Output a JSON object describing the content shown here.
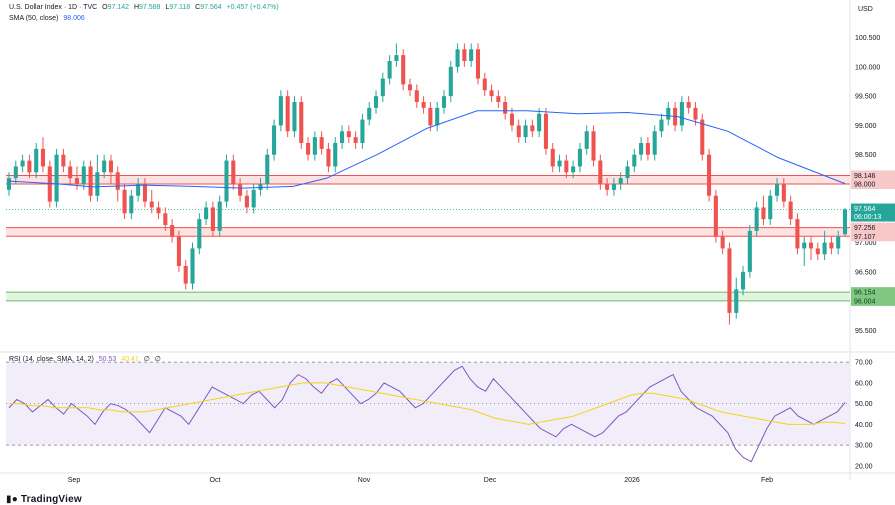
{
  "header": {
    "title": "U.S. Dollar Index · 1D · TVC",
    "o_label": "O",
    "o_value": "97.142",
    "h_label": "H",
    "h_value": "97.588",
    "l_label": "L",
    "l_value": "97.118",
    "c_label": "C",
    "c_value": "97.564",
    "change": "+0.457 (+0.47%)",
    "sma_label": "SMA (50, close)",
    "sma_value": "98.006",
    "currency": "USD"
  },
  "rsi_header": {
    "label": "RSI (14, close, SMA, 14, 2)",
    "rsi_value": "50.53",
    "sma_value": "40.41",
    "extra1": "∅",
    "extra2": "∅"
  },
  "logo_text": "TradingView",
  "colors": {
    "up": "#26a69a",
    "down": "#ef5350",
    "sma": "#2962ff",
    "rsi": "#7e57c2",
    "rsi_sma": "#f5d31a",
    "resistance_fill": "#fde2e2",
    "resistance_line": "#ef5350",
    "support_fill": "#e3f4e1",
    "support_line": "#66bb6a"
  },
  "chart_data": [
    {
      "type": "candlestick",
      "title": "U.S. Dollar Index · 1D · TVC",
      "ylim": [
        95.2,
        100.8
      ],
      "y_ticks": [
        "100.500",
        "100.000",
        "99.500",
        "99.000",
        "98.500",
        "98.000",
        "97.500",
        "97.000",
        "96.500",
        "96.000",
        "95.500"
      ],
      "x_ticks": [
        "Sep",
        "Oct",
        "Nov",
        "Dec",
        "2026",
        "Feb"
      ],
      "zones": [
        {
          "name": "resistance",
          "top": 98.146,
          "bottom": 98.0,
          "top_label": "98.146",
          "bottom_label": "98.000"
        },
        {
          "name": "mid",
          "top": 97.256,
          "bottom": 97.107,
          "top_label": "97.256",
          "bottom_label": "97.107"
        },
        {
          "name": "support",
          "top": 96.154,
          "bottom": 96.004,
          "top_label": "96.154",
          "bottom_label": "96.004"
        }
      ],
      "last_price": {
        "value": 97.564,
        "label": "97.564",
        "countdown": "06:00:13"
      },
      "candles": [
        [
          97.9,
          98.1,
          97.8,
          98.2
        ],
        [
          98.1,
          98.3,
          98.0,
          98.4
        ],
        [
          98.3,
          98.4,
          98.2,
          98.5
        ],
        [
          98.4,
          98.2,
          98.1,
          98.5
        ],
        [
          98.2,
          98.6,
          98.1,
          98.7
        ],
        [
          98.6,
          98.3,
          98.2,
          98.8
        ],
        [
          98.3,
          97.7,
          97.6,
          98.4
        ],
        [
          97.7,
          98.5,
          97.6,
          98.6
        ],
        [
          98.5,
          98.3,
          98.2,
          98.6
        ],
        [
          98.3,
          98.1,
          98.0,
          98.4
        ],
        [
          98.1,
          98.0,
          97.9,
          98.3
        ],
        [
          98.0,
          98.3,
          97.9,
          98.4
        ],
        [
          98.3,
          97.8,
          97.7,
          98.4
        ],
        [
          97.8,
          98.2,
          97.7,
          98.5
        ],
        [
          98.2,
          98.4,
          98.1,
          98.5
        ],
        [
          98.4,
          98.2,
          98.0,
          98.5
        ],
        [
          98.2,
          97.9,
          97.7,
          98.3
        ],
        [
          97.9,
          97.5,
          97.4,
          98.0
        ],
        [
          97.5,
          97.8,
          97.4,
          97.9
        ],
        [
          97.8,
          98.0,
          97.7,
          98.1
        ],
        [
          98.0,
          97.7,
          97.6,
          98.1
        ],
        [
          97.7,
          97.6,
          97.5,
          97.9
        ],
        [
          97.6,
          97.5,
          97.4,
          97.7
        ],
        [
          97.5,
          97.3,
          97.2,
          97.6
        ],
        [
          97.3,
          97.1,
          97.0,
          97.4
        ],
        [
          97.1,
          96.6,
          96.5,
          97.2
        ],
        [
          96.6,
          96.3,
          96.2,
          96.7
        ],
        [
          96.3,
          96.9,
          96.2,
          97.0
        ],
        [
          96.9,
          97.4,
          96.8,
          97.5
        ],
        [
          97.4,
          97.6,
          97.3,
          97.7
        ],
        [
          97.6,
          97.2,
          97.1,
          97.7
        ],
        [
          97.2,
          97.7,
          97.1,
          97.8
        ],
        [
          97.7,
          98.4,
          97.6,
          98.5
        ],
        [
          98.4,
          98.0,
          97.9,
          98.5
        ],
        [
          98.0,
          97.8,
          97.7,
          98.1
        ],
        [
          97.8,
          97.6,
          97.5,
          97.9
        ],
        [
          97.6,
          97.9,
          97.5,
          98.0
        ],
        [
          97.9,
          98.0,
          97.8,
          98.1
        ],
        [
          98.0,
          98.5,
          97.9,
          98.6
        ],
        [
          98.5,
          99.0,
          98.4,
          99.1
        ],
        [
          99.0,
          99.5,
          98.9,
          99.6
        ],
        [
          99.5,
          98.9,
          98.8,
          99.6
        ],
        [
          98.9,
          99.4,
          98.8,
          99.5
        ],
        [
          99.4,
          98.7,
          98.6,
          99.5
        ],
        [
          98.7,
          98.5,
          98.4,
          98.8
        ],
        [
          98.5,
          98.8,
          98.4,
          98.9
        ],
        [
          98.8,
          98.6,
          98.5,
          98.9
        ],
        [
          98.6,
          98.3,
          98.2,
          98.7
        ],
        [
          98.3,
          98.7,
          98.2,
          98.8
        ],
        [
          98.7,
          98.9,
          98.6,
          99.0
        ],
        [
          98.9,
          98.8,
          98.7,
          99.0
        ],
        [
          98.8,
          98.7,
          98.6,
          98.9
        ],
        [
          98.7,
          99.1,
          98.6,
          99.2
        ],
        [
          99.1,
          99.3,
          99.0,
          99.4
        ],
        [
          99.3,
          99.5,
          99.2,
          99.6
        ],
        [
          99.5,
          99.8,
          99.4,
          99.9
        ],
        [
          99.8,
          100.1,
          99.7,
          100.2
        ],
        [
          100.1,
          100.2,
          100.0,
          100.4
        ],
        [
          100.2,
          99.7,
          99.6,
          100.3
        ],
        [
          99.7,
          99.6,
          99.5,
          99.8
        ],
        [
          99.6,
          99.4,
          99.3,
          99.7
        ],
        [
          99.4,
          99.3,
          99.2,
          99.5
        ],
        [
          99.3,
          99.0,
          98.9,
          99.4
        ],
        [
          99.0,
          99.3,
          98.9,
          99.4
        ],
        [
          99.3,
          99.5,
          99.2,
          99.6
        ],
        [
          99.5,
          100.0,
          99.4,
          100.1
        ],
        [
          100.0,
          100.3,
          99.9,
          100.4
        ],
        [
          100.3,
          100.1,
          100.0,
          100.4
        ],
        [
          100.1,
          100.3,
          100.0,
          100.4
        ],
        [
          100.3,
          99.8,
          99.7,
          100.4
        ],
        [
          99.8,
          99.6,
          99.5,
          99.9
        ],
        [
          99.6,
          99.5,
          99.4,
          99.7
        ],
        [
          99.5,
          99.4,
          99.3,
          99.6
        ],
        [
          99.4,
          99.2,
          99.1,
          99.5
        ],
        [
          99.2,
          99.0,
          98.9,
          99.3
        ],
        [
          99.0,
          98.8,
          98.7,
          99.1
        ],
        [
          98.8,
          99.0,
          98.7,
          99.1
        ],
        [
          99.0,
          98.9,
          98.8,
          99.1
        ],
        [
          98.9,
          99.2,
          98.8,
          99.3
        ],
        [
          99.2,
          98.6,
          98.5,
          99.3
        ],
        [
          98.6,
          98.3,
          98.2,
          98.7
        ],
        [
          98.3,
          98.4,
          98.2,
          98.5
        ],
        [
          98.4,
          98.2,
          98.1,
          98.5
        ],
        [
          98.2,
          98.3,
          98.1,
          98.4
        ],
        [
          98.3,
          98.6,
          98.2,
          98.7
        ],
        [
          98.6,
          98.9,
          98.5,
          99.0
        ],
        [
          98.9,
          98.4,
          98.3,
          99.0
        ],
        [
          98.4,
          98.0,
          97.9,
          98.5
        ],
        [
          98.0,
          97.9,
          97.8,
          98.1
        ],
        [
          97.9,
          98.0,
          97.8,
          98.1
        ],
        [
          98.0,
          98.1,
          97.9,
          98.2
        ],
        [
          98.1,
          98.3,
          98.0,
          98.4
        ],
        [
          98.3,
          98.5,
          98.2,
          98.6
        ],
        [
          98.5,
          98.7,
          98.4,
          98.8
        ],
        [
          98.7,
          98.5,
          98.4,
          98.8
        ],
        [
          98.5,
          98.9,
          98.4,
          99.0
        ],
        [
          98.9,
          99.1,
          98.8,
          99.2
        ],
        [
          99.1,
          99.3,
          99.0,
          99.4
        ],
        [
          99.3,
          99.0,
          98.9,
          99.4
        ],
        [
          99.0,
          99.4,
          98.9,
          99.5
        ],
        [
          99.4,
          99.3,
          99.2,
          99.5
        ],
        [
          99.3,
          99.1,
          99.0,
          99.4
        ],
        [
          99.1,
          98.5,
          98.4,
          99.2
        ],
        [
          98.5,
          97.8,
          97.7,
          98.6
        ],
        [
          97.8,
          97.1,
          97.0,
          97.9
        ],
        [
          97.1,
          96.9,
          96.8,
          97.2
        ],
        [
          96.9,
          95.8,
          95.6,
          97.0
        ],
        [
          95.8,
          96.2,
          95.7,
          96.4
        ],
        [
          96.2,
          96.5,
          96.1,
          96.6
        ],
        [
          96.5,
          97.2,
          96.4,
          97.3
        ],
        [
          97.2,
          97.6,
          97.1,
          97.7
        ],
        [
          97.6,
          97.4,
          97.3,
          97.8
        ],
        [
          97.4,
          97.8,
          97.3,
          97.9
        ],
        [
          97.8,
          98.0,
          97.7,
          98.1
        ],
        [
          98.0,
          97.7,
          97.6,
          98.1
        ],
        [
          97.7,
          97.4,
          97.3,
          97.8
        ],
        [
          97.4,
          96.9,
          96.8,
          97.5
        ],
        [
          96.9,
          97.0,
          96.6,
          97.1
        ],
        [
          97.0,
          96.9,
          96.7,
          97.1
        ],
        [
          96.9,
          96.8,
          96.7,
          97.0
        ],
        [
          96.8,
          97.0,
          96.7,
          97.2
        ],
        [
          97.0,
          96.9,
          96.8,
          97.1
        ],
        [
          96.9,
          97.1,
          96.8,
          97.2
        ],
        [
          97.142,
          97.564,
          97.118,
          97.588
        ]
      ],
      "sma_series": [
        {
          "x": 0.0,
          "y": 98.05
        },
        {
          "x": 0.06,
          "y": 98.0
        },
        {
          "x": 0.1,
          "y": 97.95
        },
        {
          "x": 0.16,
          "y": 97.98
        },
        {
          "x": 0.22,
          "y": 97.96
        },
        {
          "x": 0.28,
          "y": 97.93
        },
        {
          "x": 0.34,
          "y": 97.96
        },
        {
          "x": 0.38,
          "y": 98.1
        },
        {
          "x": 0.44,
          "y": 98.5
        },
        {
          "x": 0.5,
          "y": 98.95
        },
        {
          "x": 0.56,
          "y": 99.25
        },
        {
          "x": 0.62,
          "y": 99.25
        },
        {
          "x": 0.68,
          "y": 99.2
        },
        {
          "x": 0.74,
          "y": 99.22
        },
        {
          "x": 0.8,
          "y": 99.15
        },
        {
          "x": 0.86,
          "y": 98.9
        },
        {
          "x": 0.92,
          "y": 98.45
        },
        {
          "x": 1.0,
          "y": 98.006
        }
      ]
    },
    {
      "type": "line",
      "title": "RSI (14, close, SMA, 14, 2)",
      "ylim": [
        18,
        72
      ],
      "y_ticks": [
        "70.00",
        "60.00",
        "50.00",
        "40.00",
        "30.00",
        "20.00"
      ],
      "bands": {
        "upper": 70,
        "middle": 50,
        "lower": 30
      },
      "series": [
        {
          "name": "RSI",
          "values": [
            48,
            52,
            50,
            46,
            49,
            52,
            48,
            45,
            50,
            47,
            44,
            40,
            46,
            50,
            49,
            47,
            44,
            40,
            36,
            42,
            48,
            46,
            44,
            40,
            46,
            52,
            58,
            56,
            54,
            52,
            50,
            54,
            56,
            52,
            48,
            52,
            60,
            64,
            62,
            58,
            55,
            60,
            62,
            58,
            54,
            50,
            52,
            55,
            60,
            58,
            56,
            52,
            48,
            50,
            54,
            58,
            62,
            66,
            68,
            62,
            58,
            56,
            62,
            58,
            54,
            50,
            46,
            42,
            38,
            36,
            34,
            38,
            40,
            38,
            36,
            34,
            36,
            40,
            44,
            46,
            50,
            54,
            58,
            60,
            62,
            64,
            56,
            52,
            48,
            46,
            44,
            40,
            36,
            28,
            24,
            22,
            30,
            38,
            44,
            46,
            48,
            44,
            42,
            40,
            42,
            44,
            46,
            50.53
          ]
        },
        {
          "name": "RSI-based MA",
          "values": [
            50,
            50,
            49,
            49,
            48,
            48,
            48,
            48,
            47,
            47,
            46,
            46,
            46,
            47,
            48,
            49,
            50,
            51,
            52,
            53,
            54,
            55,
            56,
            57,
            58,
            59,
            60,
            60,
            60,
            59,
            58,
            57,
            56,
            55,
            54,
            53,
            52,
            51,
            50,
            49,
            48,
            47,
            45,
            43,
            42,
            41,
            40,
            41,
            42,
            43,
            44,
            46,
            48,
            50,
            52,
            54,
            55,
            55,
            54,
            53,
            52,
            50,
            48,
            46,
            45,
            44,
            43,
            42,
            41,
            40,
            40,
            40,
            41,
            41,
            40.41
          ]
        }
      ]
    }
  ]
}
